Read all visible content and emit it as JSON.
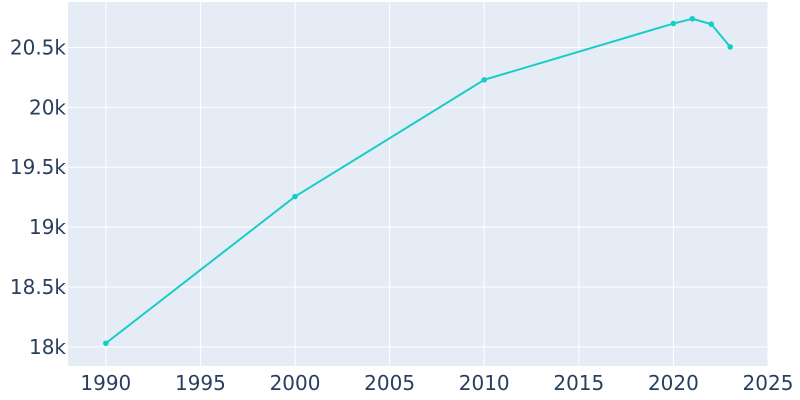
{
  "chart_data": {
    "type": "line",
    "title": "",
    "xlabel": "",
    "ylabel": "",
    "x": [
      1990,
      2000,
      2010,
      2020,
      2021,
      2022,
      2023
    ],
    "series": [
      {
        "values": [
          18030,
          19255,
          20230,
          20700,
          20740,
          20695,
          20505
        ]
      }
    ],
    "xlim": [
      1988,
      2025
    ],
    "ylim": [
      17840,
      20880
    ],
    "x_ticks": [
      1990,
      1995,
      2000,
      2005,
      2010,
      2015,
      2020,
      2025
    ],
    "x_tick_labels": [
      "1990",
      "1995",
      "2000",
      "2005",
      "2010",
      "2015",
      "2020",
      "2025"
    ],
    "y_ticks": [
      18000,
      18500,
      19000,
      19500,
      20000,
      20500
    ],
    "y_tick_labels": [
      "18k",
      "18.5k",
      "19k",
      "19.5k",
      "20k",
      "20.5k"
    ],
    "grid": true,
    "legend": false,
    "colors": {
      "line": "#17cdc6",
      "plot_background": "#e5ecf6",
      "grid": "#ffffff",
      "tick_text": "#2a3f5f"
    }
  }
}
